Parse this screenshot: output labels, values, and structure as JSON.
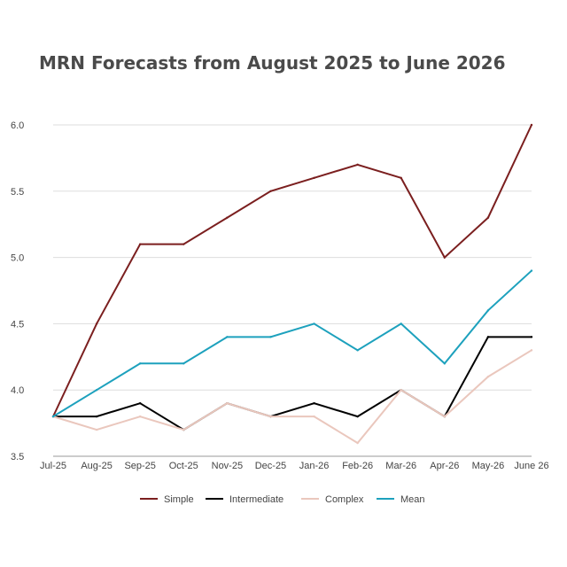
{
  "chart_data": {
    "type": "line",
    "title": "MRN Forecasts from August 2025 to June 2026",
    "xlabel": "",
    "ylabel": "",
    "categories": [
      "Jul-25",
      "Aug-25",
      "Sep-25",
      "Oct-25",
      "Nov-25",
      "Dec-25",
      "Jan-26",
      "Feb-26",
      "Mar-26",
      "Apr-26",
      "May-26",
      "June 26"
    ],
    "yticks": [
      "3.5",
      "4.0",
      "4.5",
      "5.0",
      "5.5",
      "6.0"
    ],
    "ylim": [
      3.5,
      6.0
    ],
    "grid": true,
    "legend_position": "bottom",
    "series": [
      {
        "name": "Simple",
        "color": "#7b1f1f",
        "values": [
          3.8,
          4.5,
          5.1,
          5.1,
          5.3,
          5.5,
          5.6,
          5.7,
          5.6,
          5.0,
          5.3,
          6.0
        ]
      },
      {
        "name": "Intermediate",
        "color": "#000000",
        "values": [
          3.8,
          3.8,
          3.9,
          3.7,
          3.9,
          3.8,
          3.9,
          3.8,
          4.0,
          3.8,
          4.4,
          4.4
        ]
      },
      {
        "name": "Complex",
        "color": "#eac7bd",
        "values": [
          3.8,
          3.7,
          3.8,
          3.7,
          3.9,
          3.8,
          3.8,
          3.6,
          4.0,
          3.8,
          4.1,
          4.3
        ]
      },
      {
        "name": "Mean",
        "color": "#1da1bd",
        "values": [
          3.8,
          4.0,
          4.2,
          4.2,
          4.4,
          4.4,
          4.5,
          4.3,
          4.5,
          4.2,
          4.6,
          4.9
        ]
      }
    ]
  }
}
